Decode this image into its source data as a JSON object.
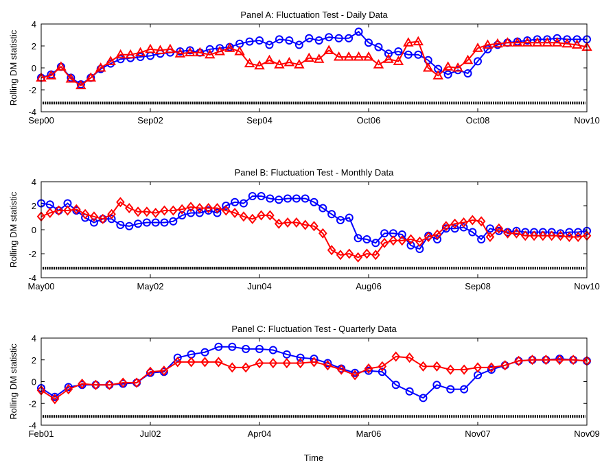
{
  "figure": {
    "xlabel": "Time",
    "threshold": -3.2
  },
  "chart_data": [
    {
      "type": "line",
      "title": "Panel A: Fluctuation Test - Daily Data",
      "ylabel": "Rolling DM statistic",
      "ylim": [
        -4,
        4
      ],
      "yticks": [
        -4,
        -2,
        0,
        2,
        4
      ],
      "xticklabels": [
        "Sep00",
        "Sep02",
        "Sep04",
        "Oct06",
        "Oct08",
        "Nov10"
      ],
      "grid": false,
      "threshold": -3.2,
      "series": [
        {
          "marker": "circle",
          "color": "#0000ff",
          "values": [
            -0.9,
            -0.6,
            0.1,
            -0.9,
            -1.5,
            -0.9,
            -0.1,
            0.4,
            0.8,
            0.9,
            1.0,
            1.1,
            1.3,
            1.4,
            1.5,
            1.6,
            1.4,
            1.7,
            1.8,
            1.9,
            2.2,
            2.4,
            2.5,
            2.1,
            2.6,
            2.5,
            2.1,
            2.7,
            2.5,
            2.8,
            2.7,
            2.7,
            3.3,
            2.3,
            1.9,
            1.3,
            1.5,
            1.2,
            1.2,
            0.7,
            -0.1,
            -0.6,
            -0.2,
            -0.5,
            0.6,
            1.7,
            2.1,
            2.3,
            2.4,
            2.5,
            2.6,
            2.6,
            2.7,
            2.6,
            2.6,
            2.6
          ]
        },
        {
          "marker": "triangle",
          "color": "#ff0000",
          "values": [
            -0.9,
            -0.7,
            0.1,
            -1.0,
            -1.6,
            -0.9,
            0.0,
            0.6,
            1.2,
            1.2,
            1.4,
            1.7,
            1.6,
            1.7,
            1.3,
            1.4,
            1.4,
            1.2,
            1.5,
            1.8,
            1.5,
            0.4,
            0.2,
            0.7,
            0.3,
            0.5,
            0.3,
            0.9,
            0.8,
            1.6,
            1.0,
            1.0,
            1.0,
            1.0,
            0.3,
            0.8,
            0.6,
            2.3,
            2.4,
            0.0,
            -0.7,
            0.1,
            0.0,
            0.7,
            1.8,
            2.1,
            2.2,
            2.3,
            2.3,
            2.3,
            2.3,
            2.3,
            2.3,
            2.2,
            2.1,
            1.9
          ]
        }
      ]
    },
    {
      "type": "line",
      "title": "Panel B: Fluctuation Test - Monthly Data",
      "ylabel": "Rolling DM statistic",
      "ylim": [
        -4,
        4
      ],
      "yticks": [
        -4,
        -2,
        0,
        2,
        4
      ],
      "xticklabels": [
        "May00",
        "May02",
        "Jun04",
        "Aug06",
        "Sep08",
        "Nov10"
      ],
      "grid": false,
      "threshold": -3.2,
      "series": [
        {
          "marker": "circle",
          "color": "#0000ff",
          "values": [
            2.2,
            2.1,
            1.6,
            2.2,
            1.6,
            1.0,
            0.6,
            0.9,
            0.9,
            0.4,
            0.3,
            0.5,
            0.6,
            0.6,
            0.6,
            0.7,
            1.2,
            1.4,
            1.4,
            1.6,
            1.4,
            2.0,
            2.3,
            2.2,
            2.8,
            2.8,
            2.6,
            2.5,
            2.6,
            2.6,
            2.6,
            2.3,
            1.8,
            1.3,
            0.8,
            1.0,
            -0.7,
            -0.8,
            -1.1,
            -0.3,
            -0.3,
            -0.4,
            -1.3,
            -1.6,
            -0.5,
            -0.8,
            0.1,
            0.1,
            0.2,
            -0.2,
            -0.8,
            0.1,
            -0.1,
            -0.2,
            -0.1,
            -0.2,
            -0.2,
            -0.2,
            -0.2,
            -0.3,
            -0.2,
            -0.2,
            -0.1
          ]
        },
        {
          "marker": "diamond",
          "color": "#ff0000",
          "values": [
            1.1,
            1.4,
            1.6,
            1.6,
            1.7,
            1.3,
            1.1,
            0.9,
            1.3,
            2.3,
            1.8,
            1.5,
            1.5,
            1.4,
            1.6,
            1.6,
            1.7,
            1.9,
            1.8,
            1.8,
            1.8,
            1.6,
            1.4,
            1.1,
            0.9,
            1.2,
            1.2,
            0.5,
            0.6,
            0.6,
            0.4,
            0.3,
            -0.3,
            -1.7,
            -2.1,
            -2.0,
            -2.3,
            -2.0,
            -2.1,
            -1.1,
            -0.9,
            -0.9,
            -0.8,
            -1.0,
            -0.6,
            -0.4,
            0.3,
            0.5,
            0.6,
            0.8,
            0.7,
            -0.6,
            0.1,
            -0.3,
            -0.3,
            -0.5,
            -0.5,
            -0.5,
            -0.5,
            -0.5,
            -0.6,
            -0.6,
            -0.5
          ]
        }
      ]
    },
    {
      "type": "line",
      "title": "Panel C: Fluctuation Test - Quarterly Data",
      "ylabel": "Rolling DM statistic",
      "xlabel": "Time",
      "ylim": [
        -4,
        4
      ],
      "yticks": [
        -4,
        -2,
        0,
        2,
        4
      ],
      "xticklabels": [
        "Feb01",
        "Jul02",
        "Apr04",
        "Mar06",
        "Nov07",
        "Nov09"
      ],
      "grid": false,
      "threshold": -3.2,
      "series": [
        {
          "marker": "circle",
          "color": "#0000ff",
          "values": [
            -0.6,
            -1.4,
            -0.5,
            -0.3,
            -0.3,
            -0.3,
            -0.2,
            -0.1,
            0.8,
            0.9,
            2.2,
            2.5,
            2.7,
            3.2,
            3.2,
            3.0,
            3.0,
            2.9,
            2.5,
            2.2,
            2.1,
            1.7,
            1.2,
            0.8,
            1.0,
            0.9,
            -0.3,
            -0.9,
            -1.5,
            -0.3,
            -0.7,
            -0.7,
            0.6,
            1.1,
            1.5,
            1.9,
            2.0,
            2.0,
            2.1,
            2.0,
            1.9
          ]
        },
        {
          "marker": "diamond",
          "color": "#ff0000",
          "values": [
            -0.8,
            -1.6,
            -0.7,
            -0.2,
            -0.3,
            -0.3,
            -0.1,
            -0.1,
            0.9,
            1.0,
            1.8,
            1.8,
            1.8,
            1.8,
            1.3,
            1.3,
            1.7,
            1.7,
            1.7,
            1.7,
            1.8,
            1.5,
            1.1,
            0.6,
            1.2,
            1.4,
            2.3,
            2.2,
            1.4,
            1.4,
            1.1,
            1.1,
            1.3,
            1.3,
            1.5,
            1.9,
            2.0,
            2.0,
            2.0,
            2.0,
            1.9
          ]
        }
      ]
    }
  ]
}
